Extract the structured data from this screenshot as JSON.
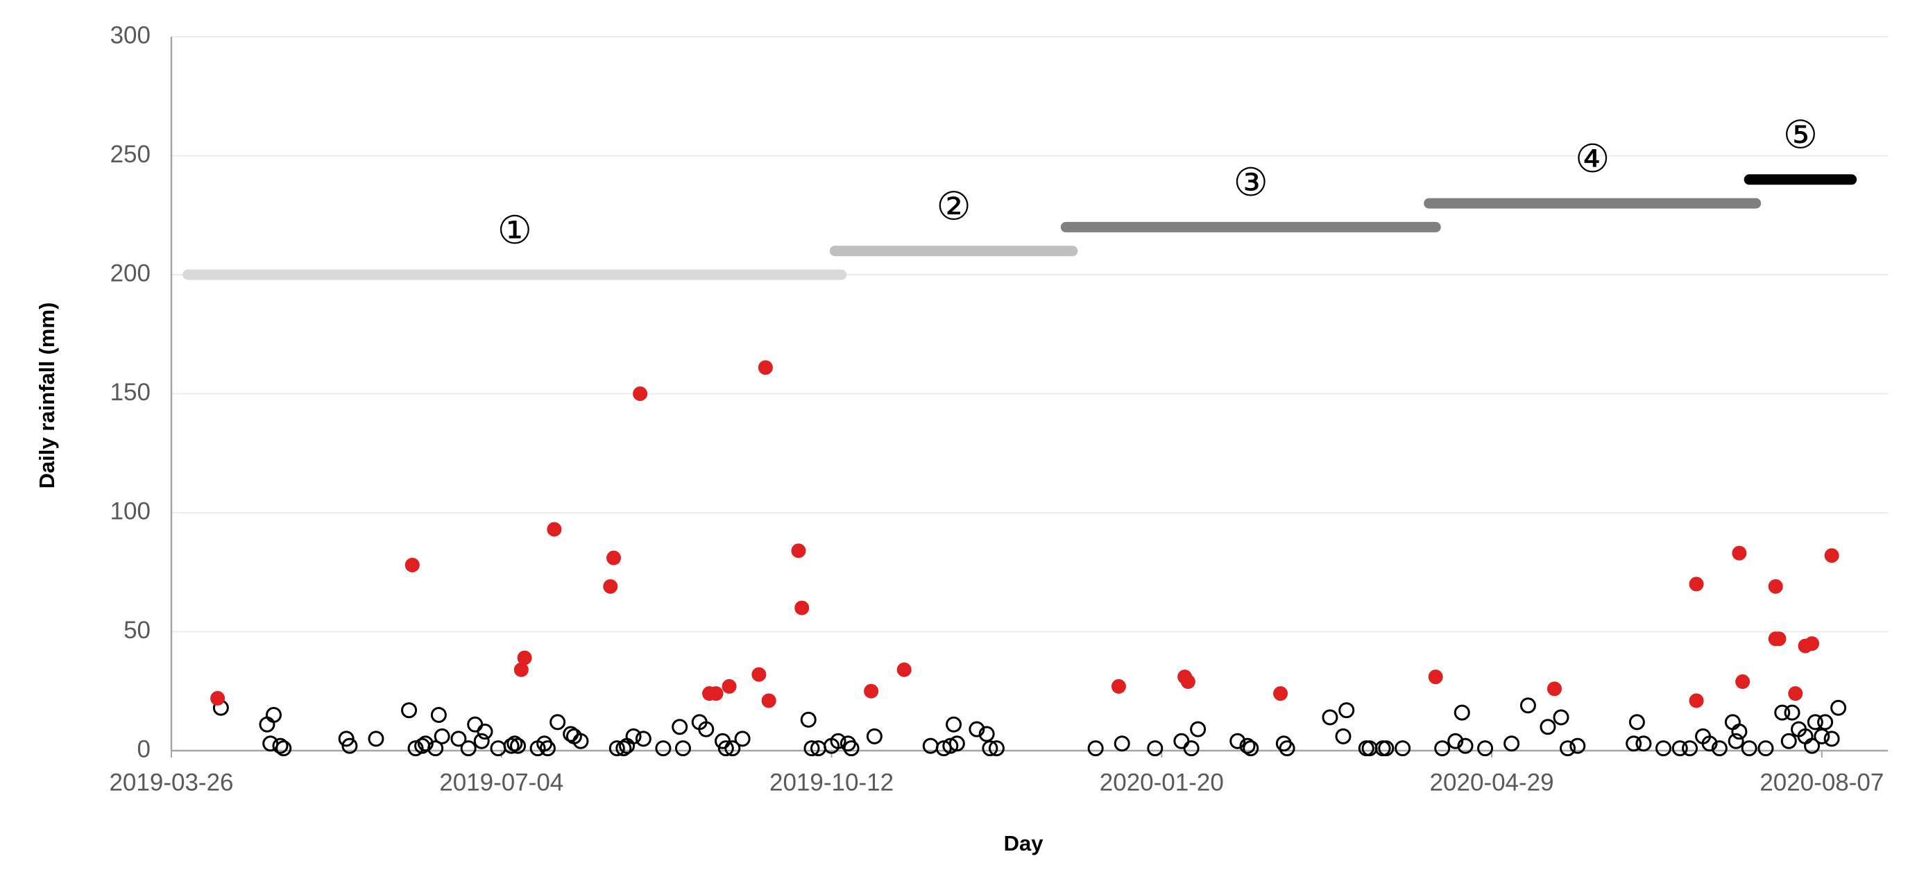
{
  "chart_data": {
    "type": "scatter",
    "x_label": "Day",
    "y_label": "Daily rainfall (mm)",
    "xlim": [
      "2019-03-26",
      "2020-08-27"
    ],
    "xticks": [
      "2019-03-26",
      "2019-07-04",
      "2019-10-12",
      "2020-01-20",
      "2020-04-29",
      "2020-08-07"
    ],
    "ylim": [
      0,
      300
    ],
    "yticks": [
      0,
      50,
      100,
      150,
      200,
      250,
      300
    ],
    "grid": true,
    "series": [
      {
        "color": "#000000",
        "fill": "none",
        "x": [
          "2019-04-10",
          "2019-04-24",
          "2019-04-25",
          "2019-04-26",
          "2019-04-28",
          "2019-04-29",
          "2019-05-18",
          "2019-05-19",
          "2019-05-27",
          "2019-06-06",
          "2019-06-08",
          "2019-06-10",
          "2019-06-11",
          "2019-06-14",
          "2019-06-15",
          "2019-06-16",
          "2019-06-21",
          "2019-06-24",
          "2019-06-26",
          "2019-06-28",
          "2019-06-29",
          "2019-07-03",
          "2019-07-07",
          "2019-07-08",
          "2019-07-09",
          "2019-07-15",
          "2019-07-17",
          "2019-07-18",
          "2019-07-21",
          "2019-07-25",
          "2019-07-26",
          "2019-07-28",
          "2019-08-08",
          "2019-08-10",
          "2019-08-11",
          "2019-08-13",
          "2019-08-16",
          "2019-08-22",
          "2019-08-27",
          "2019-08-28",
          "2019-09-02",
          "2019-09-04",
          "2019-09-09",
          "2019-09-10",
          "2019-09-12",
          "2019-09-15",
          "2019-10-05",
          "2019-10-06",
          "2019-10-08",
          "2019-10-12",
          "2019-10-14",
          "2019-10-17",
          "2019-10-18",
          "2019-10-25",
          "2019-11-11",
          "2019-11-15",
          "2019-11-17",
          "2019-11-18",
          "2019-11-19",
          "2019-11-25",
          "2019-11-28",
          "2019-11-29",
          "2019-12-01",
          "2019-12-31",
          "2020-01-08",
          "2020-01-18",
          "2020-01-26",
          "2020-01-29",
          "2020-01-31",
          "2020-02-12",
          "2020-02-15",
          "2020-02-16",
          "2020-02-26",
          "2020-02-27",
          "2020-03-11",
          "2020-03-15",
          "2020-03-16",
          "2020-03-22",
          "2020-03-23",
          "2020-03-27",
          "2020-03-28",
          "2020-04-02",
          "2020-04-14",
          "2020-04-18",
          "2020-04-20",
          "2020-04-21",
          "2020-04-27",
          "2020-05-05",
          "2020-05-10",
          "2020-05-16",
          "2020-05-20",
          "2020-05-22",
          "2020-05-25",
          "2020-06-11",
          "2020-06-12",
          "2020-06-14",
          "2020-06-20",
          "2020-06-25",
          "2020-06-28",
          "2020-07-02",
          "2020-07-04",
          "2020-07-07",
          "2020-07-11",
          "2020-07-12",
          "2020-07-13",
          "2020-07-16",
          "2020-07-21",
          "2020-07-26",
          "2020-07-28",
          "2020-07-29",
          "2020-07-31",
          "2020-08-02",
          "2020-08-04",
          "2020-08-05",
          "2020-08-07",
          "2020-08-08",
          "2020-08-10",
          "2020-08-12"
        ],
        "values": [
          18,
          11,
          3,
          15,
          2,
          1,
          5,
          2,
          5,
          17,
          1,
          2,
          3,
          1,
          15,
          6,
          5,
          1,
          11,
          4,
          8,
          1,
          2,
          3,
          2,
          1,
          3,
          1,
          12,
          7,
          6,
          4,
          1,
          1,
          2,
          6,
          5,
          1,
          10,
          1,
          12,
          9,
          4,
          1,
          1,
          5,
          13,
          1,
          1,
          2,
          4,
          3,
          1,
          6,
          2,
          1,
          2,
          11,
          3,
          9,
          7,
          1,
          1,
          1,
          3,
          1,
          4,
          1,
          9,
          4,
          2,
          1,
          3,
          1,
          14,
          6,
          17,
          1,
          1,
          1,
          1,
          1,
          1,
          4,
          16,
          2,
          1,
          3,
          19,
          10,
          14,
          1,
          2,
          3,
          12,
          3,
          1,
          1,
          1,
          6,
          3,
          1,
          12,
          4,
          8,
          1,
          1,
          16,
          4,
          16,
          9,
          6,
          2,
          12,
          6,
          12,
          5,
          18
        ]
      },
      {
        "color": "#e02020",
        "fill": "#e02020",
        "x": [
          "2019-04-09",
          "2019-06-07",
          "2019-07-10",
          "2019-07-11",
          "2019-07-20",
          "2019-08-06",
          "2019-08-07",
          "2019-08-15",
          "2019-09-05",
          "2019-09-07",
          "2019-09-11",
          "2019-09-20",
          "2019-09-22",
          "2019-09-23",
          "2019-10-02",
          "2019-10-03",
          "2019-10-24",
          "2019-11-03",
          "2020-01-07",
          "2020-01-27",
          "2020-01-28",
          "2020-02-25",
          "2020-04-12",
          "2020-05-18",
          "2020-06-30",
          "2020-06-30",
          "2020-07-13",
          "2020-07-14",
          "2020-07-24",
          "2020-07-24",
          "2020-07-25",
          "2020-07-30",
          "2020-08-02",
          "2020-08-04",
          "2020-08-10"
        ],
        "values": [
          22,
          78,
          34,
          39,
          93,
          69,
          81,
          150,
          24,
          24,
          27,
          32,
          161,
          21,
          84,
          60,
          25,
          34,
          27,
          31,
          29,
          24,
          31,
          26,
          21,
          70,
          83,
          29,
          69,
          47,
          47,
          24,
          44,
          45,
          82
        ]
      }
    ],
    "periods": [
      {
        "label": "①",
        "start": "2019-03-31",
        "end": "2019-10-15",
        "value": 200,
        "color": "#d9d9d9"
      },
      {
        "label": "②",
        "start": "2019-10-13",
        "end": "2019-12-24",
        "value": 210,
        "color": "#bfbfbf"
      },
      {
        "label": "③",
        "start": "2019-12-22",
        "end": "2020-04-12",
        "value": 220,
        "color": "#808080"
      },
      {
        "label": "④",
        "start": "2020-04-10",
        "end": "2020-07-18",
        "value": 230,
        "color": "#7f7f7f"
      },
      {
        "label": "⑤",
        "start": "2020-07-16",
        "end": "2020-08-16",
        "value": 240,
        "color": "#000000"
      }
    ]
  }
}
